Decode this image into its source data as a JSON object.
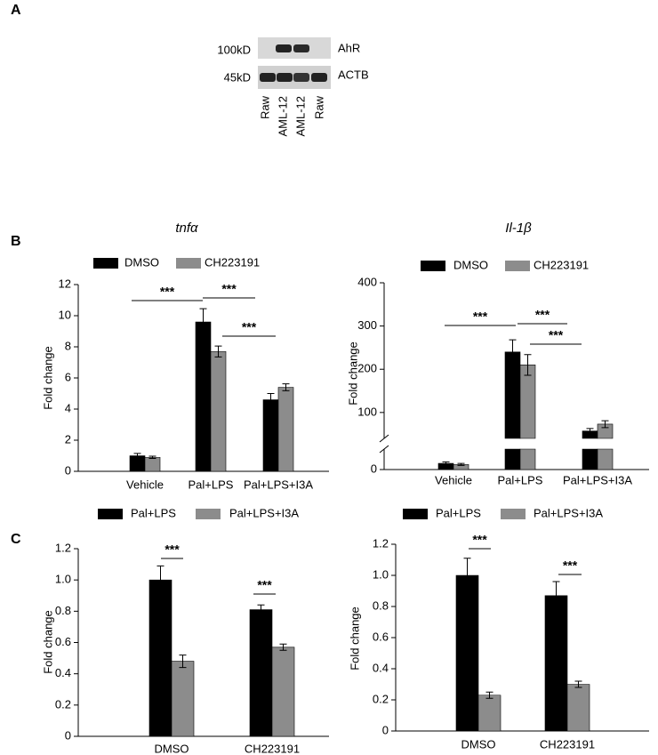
{
  "panel_labels": [
    "A",
    "B",
    "C"
  ],
  "blot": {
    "rows": [
      {
        "size": "100kD",
        "protein": "AhR"
      },
      {
        "size": "45kD",
        "protein": "ACTB"
      }
    ],
    "lanes": [
      "Raw",
      "AML-12",
      "AML-12",
      "Raw"
    ]
  },
  "chart_data": [
    {
      "type": "bar",
      "title": "tnfα",
      "y_label": "Fold change",
      "categories": [
        "Vehicle",
        "Pal+LPS",
        "Pal+LPS+I3A"
      ],
      "series": [
        {
          "name": "DMSO",
          "color": "#000000",
          "values": [
            1.0,
            9.6,
            4.6
          ],
          "errors": [
            0.15,
            0.85,
            0.4
          ]
        },
        {
          "name": "CH223191",
          "color": "#8c8c8c",
          "values": [
            0.9,
            7.7,
            5.4
          ],
          "errors": [
            0.07,
            0.35,
            0.22
          ]
        }
      ],
      "ylim": [
        0,
        12
      ],
      "yticks": [
        0,
        2,
        4,
        6,
        8,
        10,
        12
      ],
      "annotations": [
        "***",
        "***",
        "***"
      ],
      "legend": "top"
    },
    {
      "type": "bar",
      "title": "Il-1β",
      "y_label": "Fold change",
      "categories": [
        "Vehicle",
        "Pal+LPS",
        "Pal+LPS+I3A"
      ],
      "series": [
        {
          "name": "DMSO",
          "color": "#000000",
          "values": [
            6,
            240,
            57
          ],
          "errors": [
            1.5,
            28,
            6
          ]
        },
        {
          "name": "CH223191",
          "color": "#8c8c8c",
          "values": [
            5,
            210,
            73
          ],
          "errors": [
            1,
            24,
            8
          ]
        }
      ],
      "ylim": [
        0,
        400
      ],
      "yticks": [
        0,
        100,
        200,
        300,
        400
      ],
      "axis_break": [
        20,
        40
      ],
      "annotations": [
        "***",
        "***",
        "***"
      ],
      "legend": "top"
    },
    {
      "type": "bar",
      "y_label": "Fold change",
      "categories": [
        "DMSO",
        "CH223191"
      ],
      "series": [
        {
          "name": "Pal+LPS",
          "color": "#000000",
          "values": [
            1.0,
            0.81
          ],
          "errors": [
            0.09,
            0.03
          ]
        },
        {
          "name": "Pal+LPS+I3A",
          "color": "#8c8c8c",
          "values": [
            0.48,
            0.57
          ],
          "errors": [
            0.04,
            0.02
          ]
        }
      ],
      "ylim": [
        0,
        1.2
      ],
      "yticks": [
        0,
        0.2,
        0.4,
        0.6,
        0.8,
        {
          "value": 1,
          "label": "1.0"
        },
        1.2
      ],
      "annotations": [
        "***",
        "***"
      ],
      "legend": "top"
    },
    {
      "type": "bar",
      "y_label": "Fold change",
      "categories": [
        "DMSO",
        "CH223191"
      ],
      "series": [
        {
          "name": "Pal+LPS",
          "color": "#000000",
          "values": [
            1.0,
            0.87
          ],
          "errors": [
            0.11,
            0.09
          ]
        },
        {
          "name": "Pal+LPS+I3A",
          "color": "#8c8c8c",
          "values": [
            0.23,
            0.3
          ],
          "errors": [
            0.02,
            0.02
          ]
        }
      ],
      "ylim": [
        0,
        1.2
      ],
      "yticks": [
        0,
        0.2,
        0.4,
        0.6,
        0.8,
        {
          "value": 1,
          "label": "1.0"
        },
        1.2
      ],
      "annotations": [
        "***",
        "***"
      ],
      "legend": "top"
    }
  ]
}
